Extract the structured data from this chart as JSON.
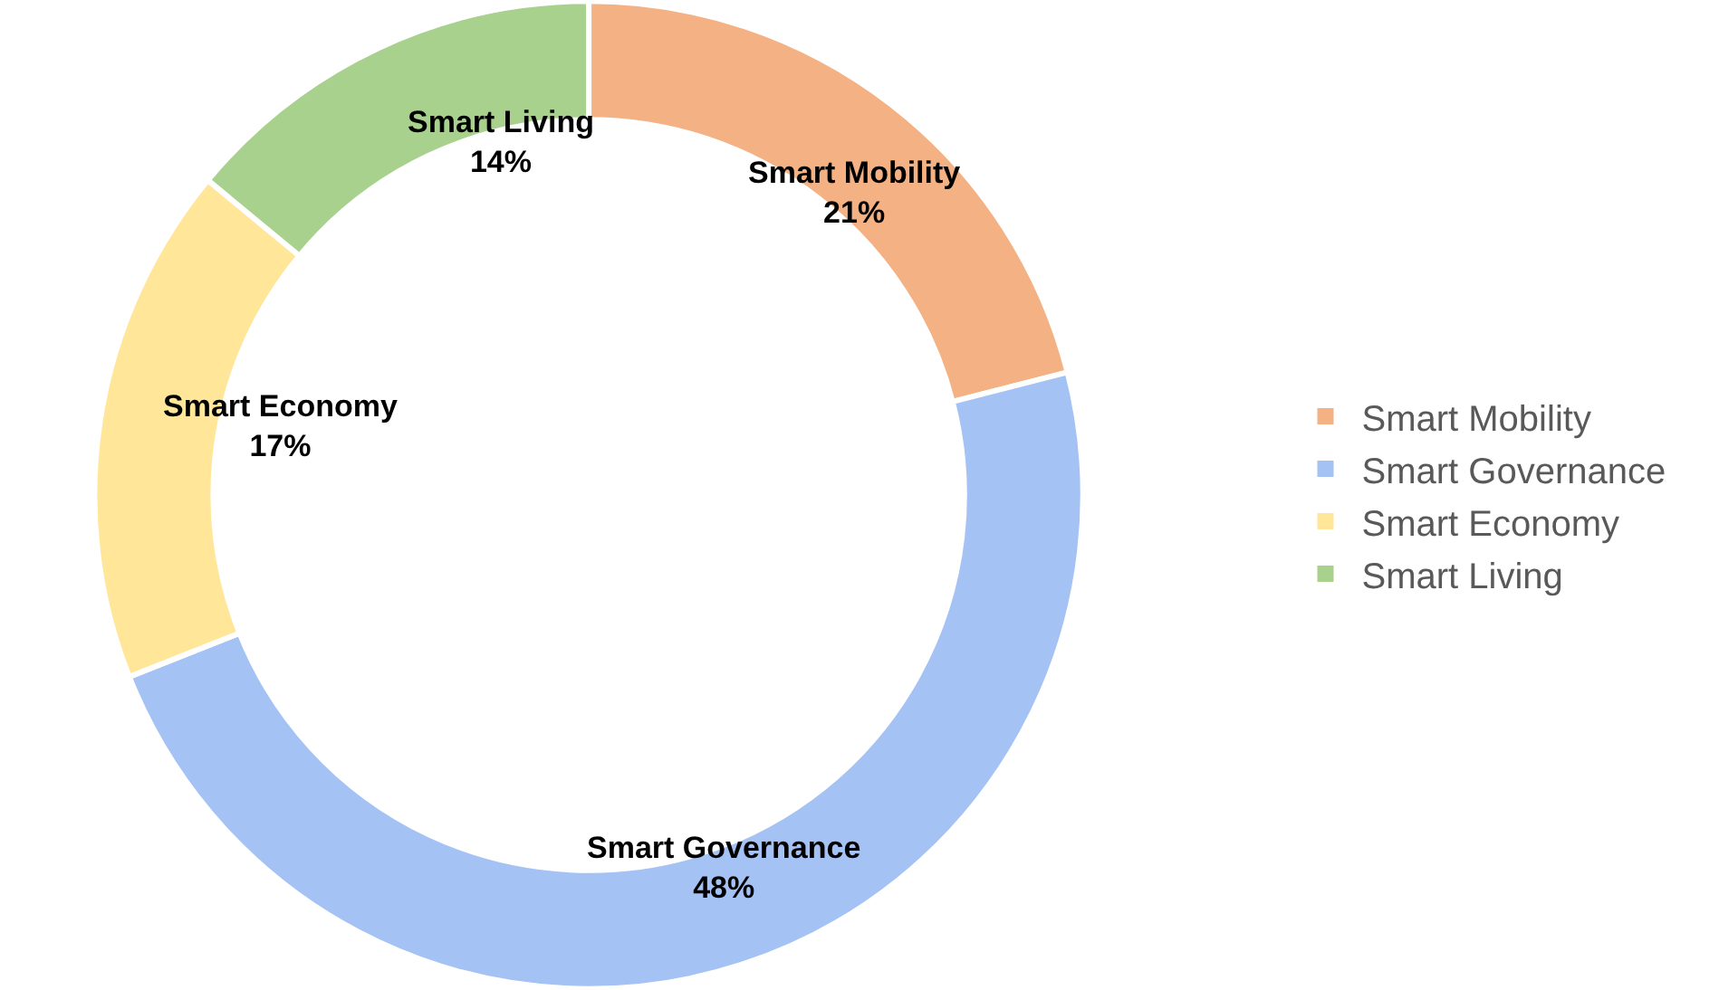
{
  "chart_data": {
    "type": "donut",
    "categories": [
      "Smart Mobility",
      "Smart Governance",
      "Smart Economy",
      "Smart Living"
    ],
    "values": [
      21,
      48,
      17,
      14
    ],
    "colors": [
      "#f4b183",
      "#a4c2f4",
      "#ffe699",
      "#a9d18e"
    ],
    "value_labels": [
      "21%",
      "48%",
      "17%",
      "14%"
    ],
    "legend": "right"
  }
}
